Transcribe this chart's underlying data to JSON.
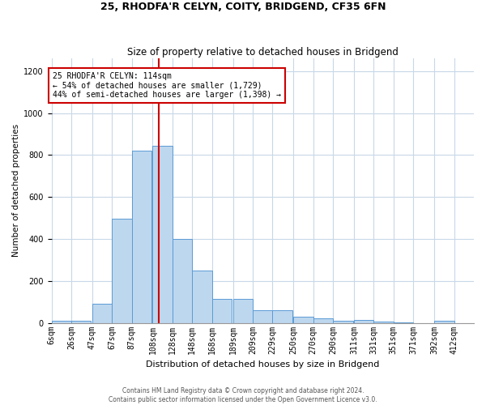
{
  "title1": "25, RHODFA'R CELYN, COITY, BRIDGEND, CF35 6FN",
  "title2": "Size of property relative to detached houses in Bridgend",
  "xlabel": "Distribution of detached houses by size in Bridgend",
  "ylabel": "Number of detached properties",
  "footnote1": "Contains HM Land Registry data © Crown copyright and database right 2024.",
  "footnote2": "Contains public sector information licensed under the Open Government Licence v3.0.",
  "annotation_title": "25 RHODFA'R CELYN: 114sqm",
  "annotation_line1": "← 54% of detached houses are smaller (1,729)",
  "annotation_line2": "44% of semi-detached houses are larger (1,398) →",
  "bar_color": "#BDD7EE",
  "bar_edge_color": "#5B9BD5",
  "vline_color": "#CC0000",
  "vline_x_index": 5,
  "categories": [
    "6sqm",
    "26sqm",
    "47sqm",
    "67sqm",
    "87sqm",
    "108sqm",
    "128sqm",
    "148sqm",
    "168sqm",
    "189sqm",
    "209sqm",
    "229sqm",
    "250sqm",
    "270sqm",
    "290sqm",
    "311sqm",
    "331sqm",
    "351sqm",
    "371sqm",
    "392sqm",
    "412sqm"
  ],
  "bin_edges": [
    6,
    26,
    47,
    67,
    87,
    108,
    128,
    148,
    168,
    189,
    209,
    229,
    250,
    270,
    290,
    311,
    331,
    351,
    371,
    392,
    412
  ],
  "bin_width": 20,
  "bar_heights": [
    10,
    12,
    90,
    495,
    820,
    845,
    400,
    250,
    115,
    115,
    62,
    62,
    28,
    22,
    10,
    13,
    6,
    4,
    0,
    10,
    0
  ],
  "ylim": [
    0,
    1260
  ],
  "yticks": [
    0,
    200,
    400,
    600,
    800,
    1000,
    1200
  ],
  "background_color": "#FFFFFF",
  "grid_color": "#C8D8E8",
  "title1_fontsize": 9,
  "title2_fontsize": 8.5,
  "xlabel_fontsize": 8,
  "ylabel_fontsize": 7.5,
  "tick_fontsize": 7,
  "annot_fontsize": 7,
  "footnote_fontsize": 5.5
}
